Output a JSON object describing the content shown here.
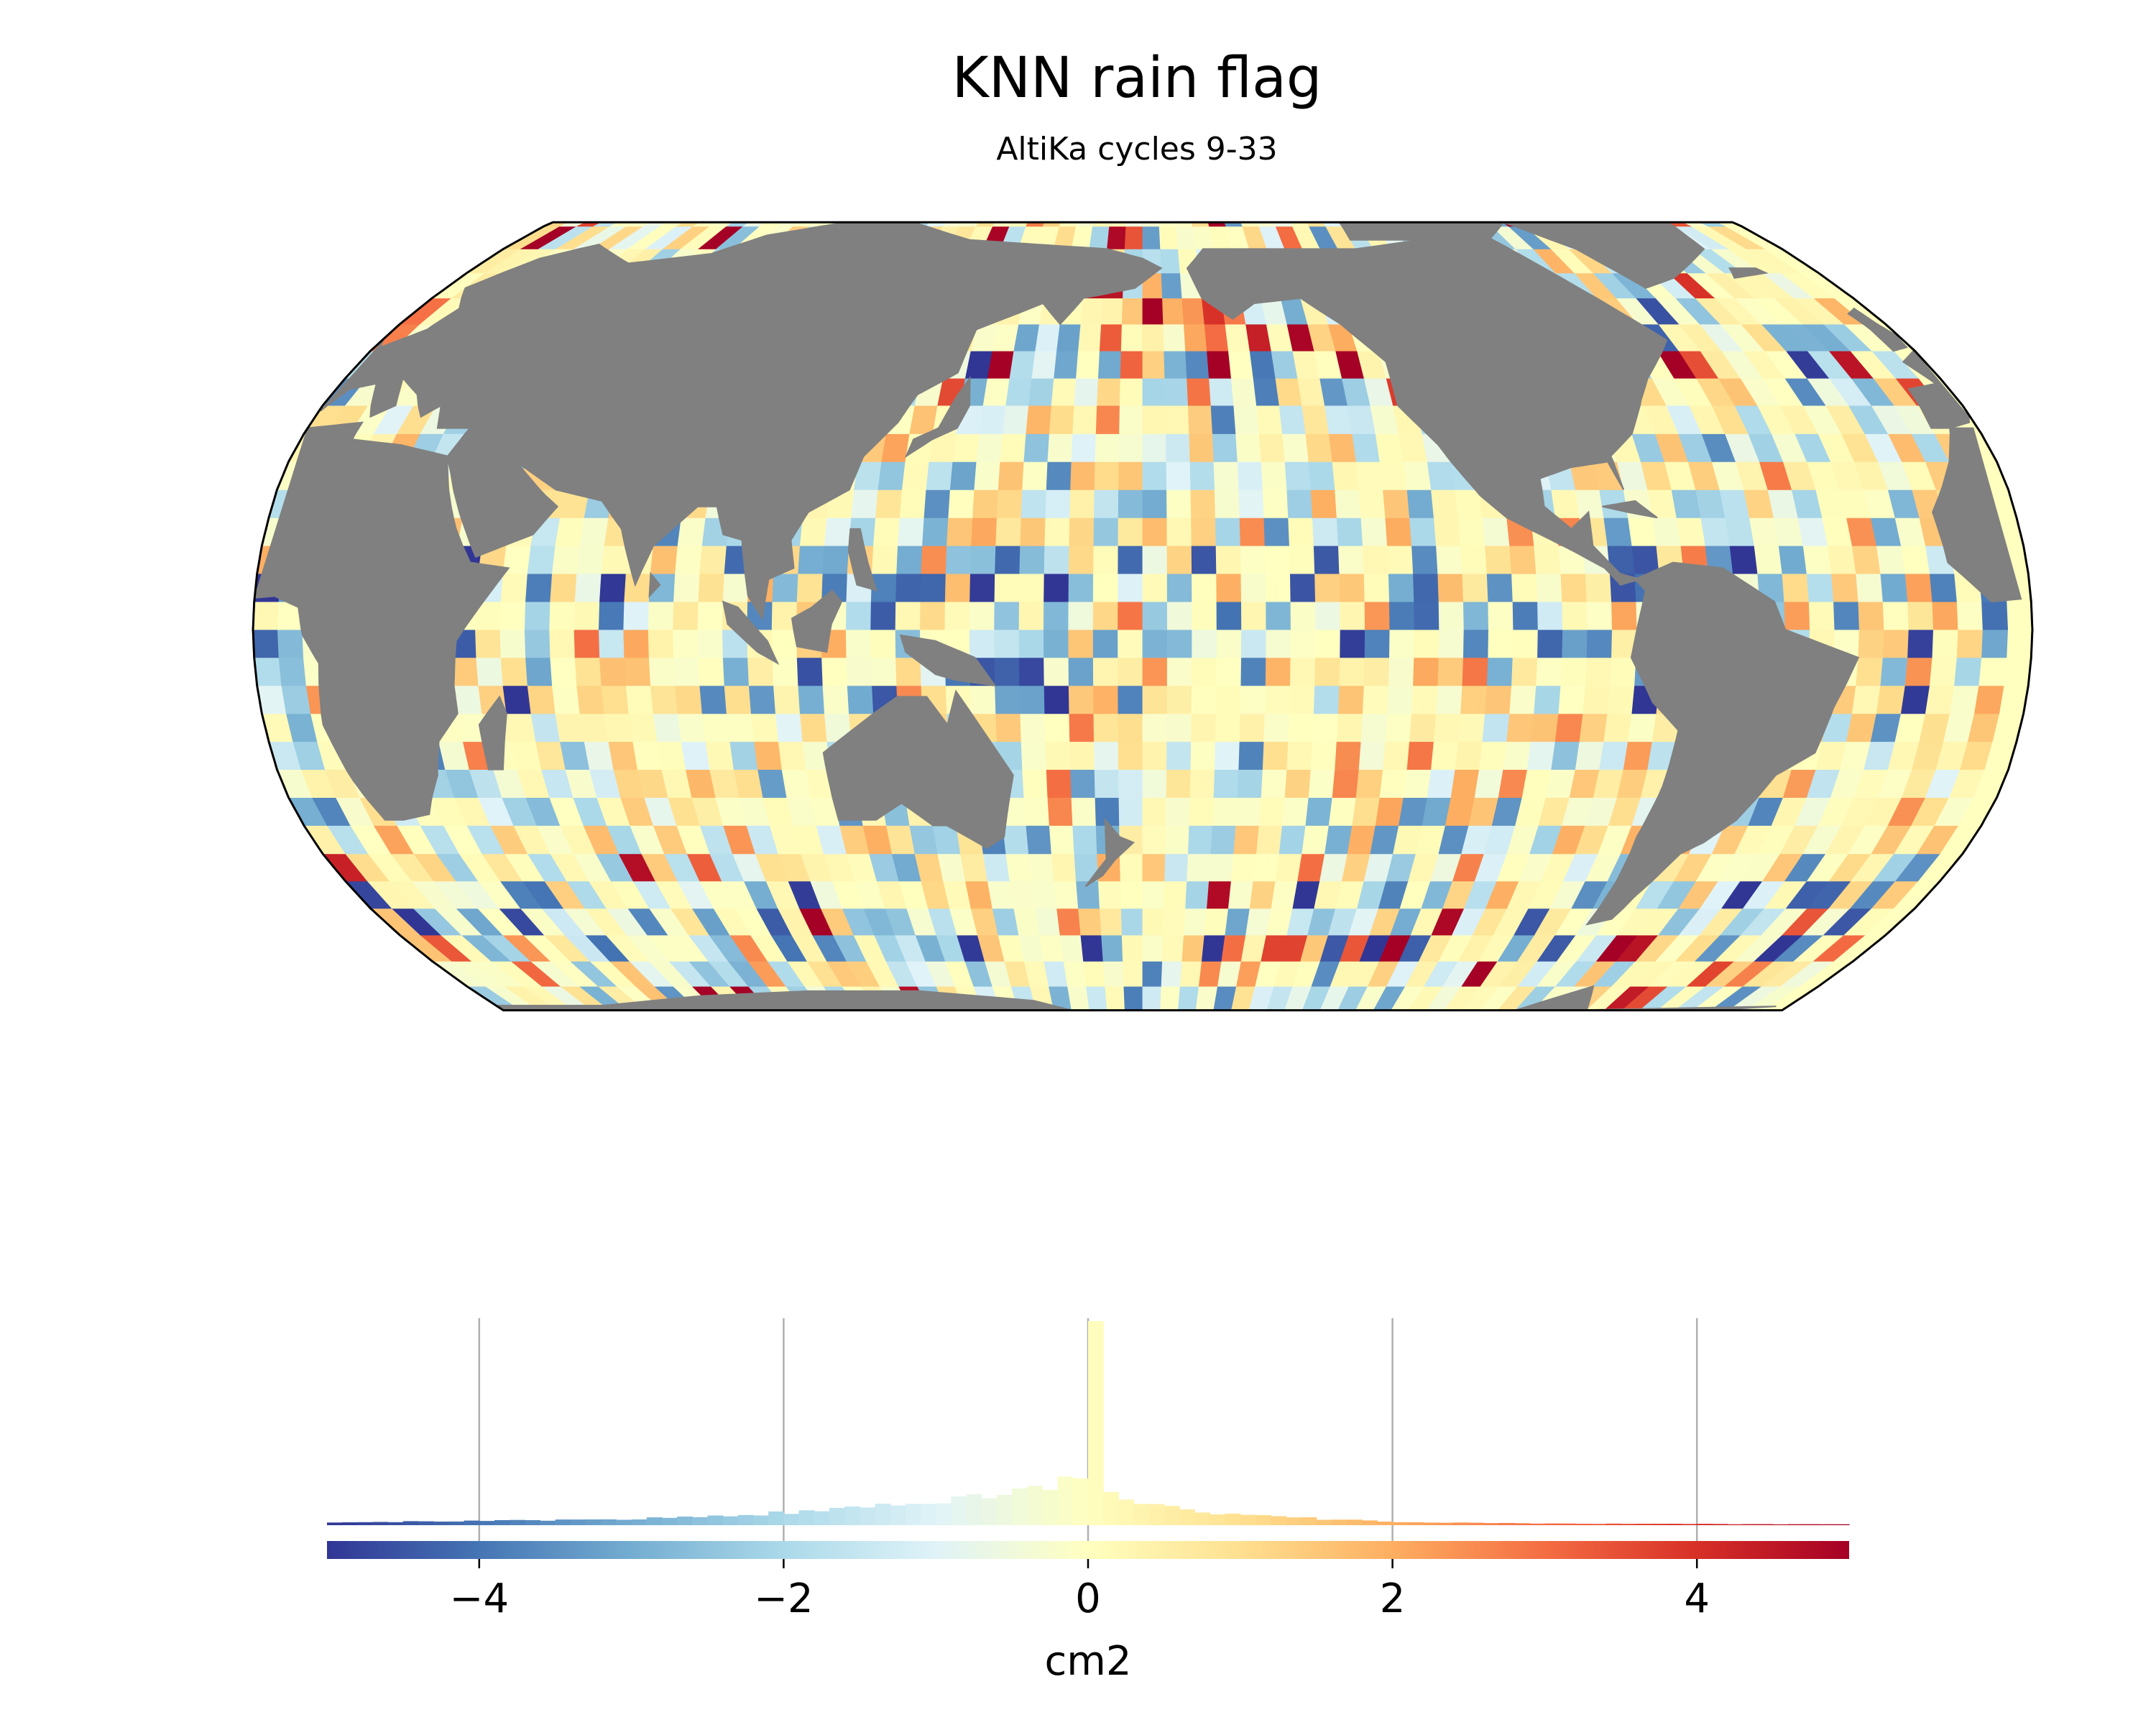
{
  "figure": {
    "title": "KNN rain flag",
    "subtitle": "AltiKa cycles 9-33"
  },
  "map": {
    "projection": "Robinson",
    "central_longitude": 180,
    "land_color": "#808080",
    "ocean_background": "#ffffbf",
    "grid_step_deg": 5,
    "seed": 9331
  },
  "colorbar": {
    "label": "cm2",
    "vmin": -5,
    "vmax": 5,
    "ticks": [
      "−4",
      "−2",
      "0",
      "2",
      "4"
    ],
    "tick_values": [
      -4,
      -2,
      0,
      2,
      4
    ],
    "colormap": "RdYlBu_r",
    "colors": [
      "#313695",
      "#4575b4",
      "#74add1",
      "#abd9e9",
      "#e0f3f8",
      "#ffffbf",
      "#fee090",
      "#fdae61",
      "#f46d43",
      "#d73027",
      "#a50026"
    ]
  },
  "chart_data": {
    "type": "heatmap",
    "title": "KNN rain flag",
    "subtitle": "AltiKa cycles 9-33",
    "colorbar_label": "cm2",
    "clim": [
      -5,
      5
    ],
    "histogram": {
      "type": "bar",
      "bin_width": 0.1,
      "x_range": [
        -5,
        5
      ],
      "peak_bin_x": 0.05,
      "peak_value": 1.0,
      "relative_counts_description_points": [
        {
          "x": -5.0,
          "y": 0.015
        },
        {
          "x": -4.0,
          "y": 0.02
        },
        {
          "x": -3.0,
          "y": 0.03
        },
        {
          "x": -2.0,
          "y": 0.06
        },
        {
          "x": -1.0,
          "y": 0.12
        },
        {
          "x": -0.5,
          "y": 0.17
        },
        {
          "x": -0.2,
          "y": 0.2
        },
        {
          "x": 0.0,
          "y": 0.23
        },
        {
          "x": 0.05,
          "y": 1.0
        },
        {
          "x": 0.15,
          "y": 0.15
        },
        {
          "x": 0.5,
          "y": 0.09
        },
        {
          "x": 1.0,
          "y": 0.05
        },
        {
          "x": 2.0,
          "y": 0.015
        },
        {
          "x": 3.0,
          "y": 0.008
        },
        {
          "x": 4.0,
          "y": 0.006
        },
        {
          "x": 5.0,
          "y": 0.004
        }
      ]
    }
  }
}
